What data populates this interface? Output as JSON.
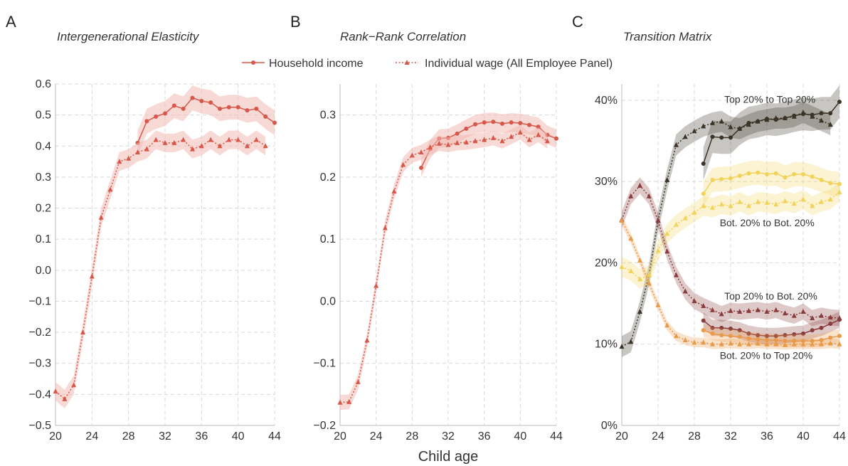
{
  "figure": {
    "xlabel": "Child age",
    "legend": {
      "household": "Household income",
      "individual": "Individual wage (All Employee Panel)"
    }
  },
  "colors": {
    "household": "#d7584a",
    "individual": "#d7584a",
    "band": "#f0b9b2",
    "top_top": "#3b3426",
    "bot_bot": "#f2d35a",
    "top_bot": "#8a3c3c",
    "bot_top": "#e89a4a"
  },
  "chart_data": [
    {
      "type": "line",
      "letter": "A",
      "title": "Intergenerational Elasticity",
      "xlim": [
        20,
        44
      ],
      "ylim": [
        -0.5,
        0.6
      ],
      "xticks": [
        20,
        24,
        28,
        32,
        36,
        40,
        44
      ],
      "yticks": [
        -0.5,
        -0.4,
        -0.3,
        -0.2,
        -0.1,
        0.0,
        0.1,
        0.2,
        0.3,
        0.4,
        0.5,
        0.6
      ],
      "ytick_labels": [
        "−0.5",
        "−0.4",
        "−0.3",
        "−0.2",
        "−0.1",
        "0.0",
        "0.1",
        "0.2",
        "0.3",
        "0.4",
        "0.5",
        "0.6"
      ],
      "series": [
        {
          "key": "household",
          "marker": "circle",
          "x": [
            29,
            30,
            31,
            32,
            33,
            34,
            35,
            36,
            37,
            38,
            39,
            40,
            41,
            42,
            43,
            44
          ],
          "y": [
            0.41,
            0.48,
            0.495,
            0.505,
            0.53,
            0.52,
            0.555,
            0.545,
            0.54,
            0.52,
            0.525,
            0.525,
            0.515,
            0.52,
            0.495,
            0.475
          ],
          "band": 0.04
        },
        {
          "key": "individual",
          "marker": "triangle",
          "x": [
            20,
            21,
            22,
            23,
            24,
            25,
            26,
            27,
            28,
            29,
            30,
            31,
            32,
            33,
            34,
            35,
            36,
            37,
            38,
            39,
            40,
            41,
            42,
            43
          ],
          "y": [
            -0.39,
            -0.415,
            -0.37,
            -0.2,
            -0.02,
            0.17,
            0.26,
            0.35,
            0.36,
            0.38,
            0.39,
            0.42,
            0.41,
            0.41,
            0.42,
            0.39,
            0.4,
            0.42,
            0.4,
            0.42,
            0.42,
            0.4,
            0.42,
            0.4
          ],
          "band": 0.03
        }
      ]
    },
    {
      "type": "line",
      "letter": "B",
      "title": "Rank−Rank Correlation",
      "xlim": [
        20,
        44
      ],
      "ylim": [
        -0.2,
        0.35
      ],
      "xticks": [
        20,
        24,
        28,
        32,
        36,
        40,
        44
      ],
      "yticks": [
        -0.2,
        -0.1,
        0.0,
        0.1,
        0.2,
        0.3
      ],
      "ytick_labels": [
        "−0.2",
        "−0.1",
        "0.0",
        "0.1",
        "0.2",
        "0.3"
      ],
      "series": [
        {
          "key": "household",
          "marker": "circle",
          "x": [
            29,
            30,
            31,
            32,
            33,
            34,
            35,
            36,
            37,
            38,
            39,
            40,
            41,
            42,
            43,
            44
          ],
          "y": [
            0.215,
            0.245,
            0.262,
            0.263,
            0.27,
            0.278,
            0.285,
            0.288,
            0.289,
            0.286,
            0.288,
            0.287,
            0.284,
            0.281,
            0.268,
            0.262
          ],
          "band": 0.015
        },
        {
          "key": "individual",
          "marker": "triangle",
          "x": [
            20,
            21,
            22,
            23,
            24,
            25,
            26,
            27,
            28,
            29,
            30,
            31,
            32,
            33,
            34,
            35,
            36,
            37,
            38,
            39,
            40,
            41,
            42,
            43
          ],
          "y": [
            -0.163,
            -0.162,
            -0.13,
            -0.063,
            0.025,
            0.118,
            0.177,
            0.22,
            0.235,
            0.24,
            0.248,
            0.254,
            0.252,
            0.255,
            0.256,
            0.258,
            0.26,
            0.263,
            0.258,
            0.265,
            0.272,
            0.26,
            0.268,
            0.258
          ],
          "band": 0.012
        }
      ]
    },
    {
      "type": "line",
      "letter": "C",
      "title": "Transition Matrix",
      "xlim": [
        20,
        44
      ],
      "ylim": [
        0,
        0.42
      ],
      "xticks": [
        20,
        24,
        28,
        32,
        36,
        40,
        44
      ],
      "yticks": [
        0,
        0.1,
        0.2,
        0.3,
        0.4
      ],
      "ytick_labels": [
        "0%",
        "10%",
        "20%",
        "30%",
        "40%"
      ],
      "annotations": [
        {
          "text": "Top 20% to Top 20%",
          "x": 31.3,
          "y": 0.397
        },
        {
          "text": "Bot. 20% to Bot. 20%",
          "x": 30.8,
          "y": 0.245
        },
        {
          "text": "Top 20% to Bot. 20%",
          "x": 31.3,
          "y": 0.155
        },
        {
          "text": "Bot. 20% to Top 20%",
          "x": 30.8,
          "y": 0.082
        }
      ],
      "series": [
        {
          "key": "top_top",
          "group": "household",
          "marker": "circle",
          "x": [
            29,
            30,
            31,
            32,
            33,
            34,
            35,
            36,
            37,
            38,
            39,
            40,
            41,
            42,
            43,
            44
          ],
          "y": [
            0.322,
            0.355,
            0.354,
            0.354,
            0.365,
            0.372,
            0.374,
            0.377,
            0.376,
            0.378,
            0.381,
            0.383,
            0.382,
            0.384,
            0.384,
            0.398
          ],
          "band": 0.02
        },
        {
          "key": "top_top",
          "group": "individual",
          "marker": "triangle",
          "x": [
            20,
            21,
            22,
            23,
            24,
            25,
            26,
            27,
            28,
            29,
            30,
            31,
            32,
            33,
            34,
            35,
            36,
            37,
            38,
            39,
            40,
            41,
            42,
            43
          ],
          "y": [
            0.097,
            0.103,
            0.14,
            0.185,
            0.252,
            0.302,
            0.345,
            0.355,
            0.362,
            0.368,
            0.372,
            0.374,
            0.367,
            0.365,
            0.37,
            0.374,
            0.376,
            0.378,
            0.378,
            0.38,
            0.385,
            0.38,
            0.375,
            0.37
          ],
          "band": 0.013
        },
        {
          "key": "bot_bot",
          "group": "household",
          "marker": "circle",
          "x": [
            29,
            30,
            31,
            32,
            33,
            34,
            35,
            36,
            37,
            38,
            39,
            40,
            41,
            42,
            43,
            44
          ],
          "y": [
            0.285,
            0.302,
            0.303,
            0.304,
            0.307,
            0.31,
            0.311,
            0.309,
            0.31,
            0.305,
            0.309,
            0.309,
            0.306,
            0.302,
            0.298,
            0.297
          ],
          "band": 0.015
        },
        {
          "key": "bot_bot",
          "group": "individual",
          "marker": "triangle",
          "x": [
            20,
            21,
            22,
            23,
            24,
            25,
            26,
            27,
            28,
            29,
            30,
            31,
            32,
            33,
            34,
            35,
            36,
            37,
            38,
            39,
            40,
            41,
            42,
            43,
            44
          ],
          "y": [
            0.195,
            0.19,
            0.18,
            0.185,
            0.215,
            0.236,
            0.247,
            0.255,
            0.262,
            0.27,
            0.268,
            0.272,
            0.27,
            0.275,
            0.27,
            0.275,
            0.274,
            0.272,
            0.276,
            0.273,
            0.278,
            0.27,
            0.275,
            0.278,
            0.287
          ],
          "band": 0.012
        },
        {
          "key": "top_bot",
          "group": "household",
          "marker": "circle",
          "x": [
            29,
            30,
            31,
            32,
            33,
            34,
            35,
            36,
            37,
            38,
            39,
            40,
            41,
            42,
            43,
            44
          ],
          "y": [
            0.129,
            0.12,
            0.12,
            0.119,
            0.117,
            0.113,
            0.111,
            0.11,
            0.11,
            0.111,
            0.112,
            0.113,
            0.117,
            0.12,
            0.125,
            0.13
          ],
          "band": 0.01
        },
        {
          "key": "top_bot",
          "group": "individual",
          "marker": "triangle",
          "x": [
            20,
            21,
            22,
            23,
            24,
            25,
            26,
            27,
            28,
            29,
            30,
            31,
            32,
            33,
            34,
            35,
            36,
            37,
            38,
            39,
            40,
            41,
            42,
            43,
            44
          ],
          "y": [
            0.253,
            0.282,
            0.295,
            0.282,
            0.252,
            0.214,
            0.185,
            0.165,
            0.153,
            0.147,
            0.142,
            0.137,
            0.141,
            0.14,
            0.141,
            0.142,
            0.14,
            0.142,
            0.138,
            0.135,
            0.14,
            0.132,
            0.135,
            0.133,
            0.132
          ],
          "band": 0.01
        },
        {
          "key": "bot_top",
          "group": "household",
          "marker": "circle",
          "x": [
            29,
            30,
            31,
            32,
            33,
            34,
            35,
            36,
            37,
            38,
            39,
            40,
            41,
            42,
            43,
            44
          ],
          "y": [
            0.117,
            0.113,
            0.111,
            0.11,
            0.109,
            0.107,
            0.106,
            0.105,
            0.105,
            0.104,
            0.104,
            0.104,
            0.104,
            0.105,
            0.108,
            0.11
          ],
          "band": 0.008
        },
        {
          "key": "bot_top",
          "group": "individual",
          "marker": "triangle",
          "x": [
            20,
            21,
            22,
            23,
            24,
            25,
            26,
            27,
            28,
            29,
            30,
            31,
            32,
            33,
            34,
            35,
            36,
            37,
            38,
            39,
            40,
            41,
            42,
            43,
            44
          ],
          "y": [
            0.252,
            0.23,
            0.203,
            0.175,
            0.148,
            0.123,
            0.11,
            0.105,
            0.102,
            0.102,
            0.1,
            0.1,
            0.101,
            0.1,
            0.1,
            0.101,
            0.1,
            0.1,
            0.099,
            0.1,
            0.1,
            0.1,
            0.1,
            0.101,
            0.1
          ],
          "band": 0.006
        }
      ]
    }
  ]
}
